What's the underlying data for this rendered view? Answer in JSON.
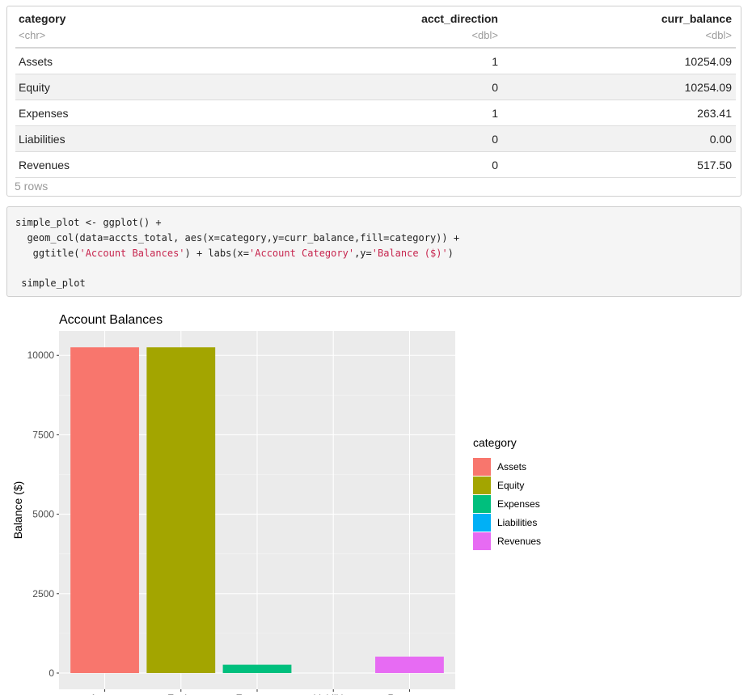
{
  "table": {
    "columns": [
      {
        "name": "category",
        "type": "<chr>"
      },
      {
        "name": "acct_direction",
        "type": "<dbl>"
      },
      {
        "name": "curr_balance",
        "type": "<dbl>"
      }
    ],
    "rows": [
      {
        "category": "Assets",
        "acct_direction": "1",
        "curr_balance": "10254.09"
      },
      {
        "category": "Equity",
        "acct_direction": "0",
        "curr_balance": "10254.09"
      },
      {
        "category": "Expenses",
        "acct_direction": "1",
        "curr_balance": "263.41"
      },
      {
        "category": "Liabilities",
        "acct_direction": "0",
        "curr_balance": "0.00"
      },
      {
        "category": "Revenues",
        "acct_direction": "0",
        "curr_balance": "517.50"
      }
    ],
    "footer": "5 rows"
  },
  "code": {
    "line1": "simple_plot <- ggplot() +",
    "line2": "  geom_col(data=accts_total, aes(x=category,y=curr_balance,fill=category)) +",
    "line3_pre": "   ggtitle(",
    "line3_str1": "'Account Balances'",
    "line3_mid": ") + labs(x=",
    "line3_str2": "'Account Category'",
    "line3_mid2": ",y=",
    "line3_str3": "'Balance ($)'",
    "line3_post": ")",
    "line5": " simple_plot"
  },
  "chart_data": {
    "type": "bar",
    "title": "Account Balances",
    "xlabel": "Account Category",
    "ylabel": "Balance ($)",
    "categories": [
      "Assets",
      "Equity",
      "Expenses",
      "Liabilities",
      "Revenues"
    ],
    "values": [
      10254.09,
      10254.09,
      263.41,
      0.0,
      517.5
    ],
    "colors": [
      "#F8766D",
      "#A3A500",
      "#00BF7D",
      "#00B0F6",
      "#E76BF3"
    ],
    "ylim": [
      -510,
      10770
    ],
    "yticks": [
      0,
      2500,
      5000,
      7500,
      10000
    ],
    "ytick_labels": [
      "0",
      "2500",
      "5000",
      "7500",
      "10000"
    ],
    "grid": true,
    "legend_title": "category",
    "legend_position": "right"
  }
}
